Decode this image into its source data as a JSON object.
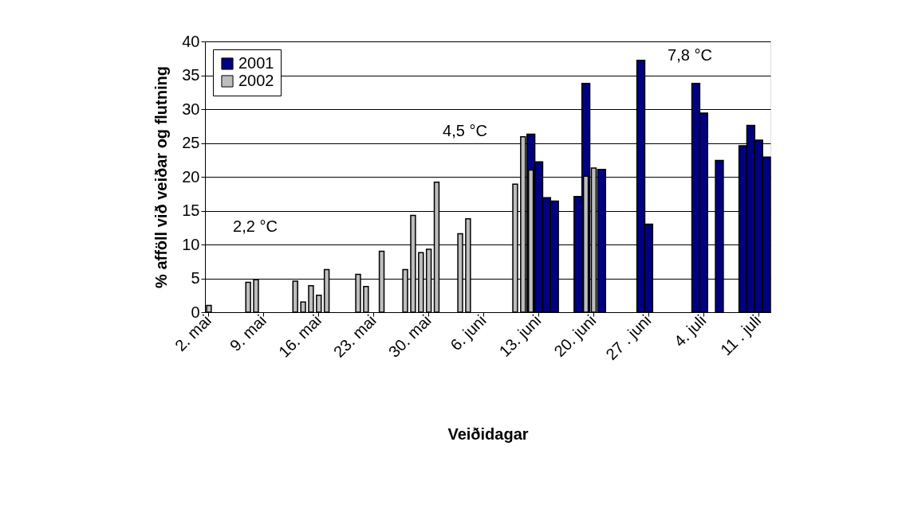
{
  "chart_data": {
    "type": "bar",
    "xlabel": "Veiðidagar",
    "ylabel": "% afföll við veiðar og flutning",
    "categories": [
      "2. mai",
      null,
      null,
      null,
      null,
      null,
      null,
      "9. mai",
      null,
      null,
      null,
      null,
      null,
      null,
      "16. mai",
      null,
      null,
      null,
      null,
      null,
      null,
      "23. mai",
      null,
      null,
      null,
      null,
      null,
      null,
      "30. mai",
      null,
      null,
      null,
      null,
      null,
      null,
      "6. juni",
      null,
      null,
      null,
      null,
      null,
      null,
      "13. juni",
      null,
      null,
      null,
      null,
      null,
      null,
      "20. juni",
      null,
      null,
      null,
      null,
      null,
      null,
      "27 . juni",
      null,
      null,
      null,
      null,
      null,
      null,
      "4. juli",
      null,
      null,
      null,
      null,
      null,
      null,
      "11 . juli",
      null
    ],
    "series": [
      {
        "name": "2001",
        "color": "#000080",
        "values": [
          null,
          null,
          null,
          null,
          null,
          null,
          null,
          null,
          null,
          null,
          null,
          null,
          null,
          null,
          null,
          null,
          null,
          null,
          null,
          null,
          null,
          null,
          null,
          null,
          null,
          null,
          null,
          null,
          null,
          null,
          null,
          null,
          null,
          null,
          null,
          null,
          null,
          null,
          null,
          null,
          null,
          26.3,
          22.2,
          16.9,
          16.4,
          null,
          null,
          17.1,
          33.8,
          null,
          21.1,
          null,
          null,
          null,
          null,
          37.2,
          13.0,
          null,
          null,
          null,
          null,
          null,
          33.8,
          29.4,
          null,
          22.4,
          null,
          null,
          24.6,
          27.6,
          25.4,
          22.9
        ]
      },
      {
        "name": "2002",
        "color": "#bdbdbd",
        "values": [
          1.0,
          null,
          null,
          null,
          null,
          4.4,
          4.8,
          null,
          null,
          null,
          null,
          4.6,
          1.5,
          3.9,
          2.5,
          6.3,
          null,
          null,
          null,
          5.6,
          3.8,
          null,
          9.0,
          null,
          null,
          6.3,
          14.3,
          8.8,
          9.3,
          19.2,
          null,
          null,
          11.6,
          13.8,
          null,
          null,
          null,
          null,
          null,
          18.9,
          25.9,
          21.0,
          null,
          null,
          null,
          null,
          null,
          null,
          20.1,
          21.3,
          null,
          null,
          null,
          null,
          null,
          null,
          null,
          null,
          null,
          null,
          null,
          null,
          null,
          null,
          null,
          null,
          null,
          null,
          null,
          null,
          null,
          null
        ]
      }
    ],
    "ylim": [
      0,
      40
    ],
    "yticks": [
      0,
      5,
      10,
      15,
      20,
      25,
      30,
      35,
      40
    ],
    "grid": "y",
    "legend": "top left",
    "annotations": [
      "2,2 °C",
      "4,5 °C",
      "7,8 °C"
    ]
  }
}
